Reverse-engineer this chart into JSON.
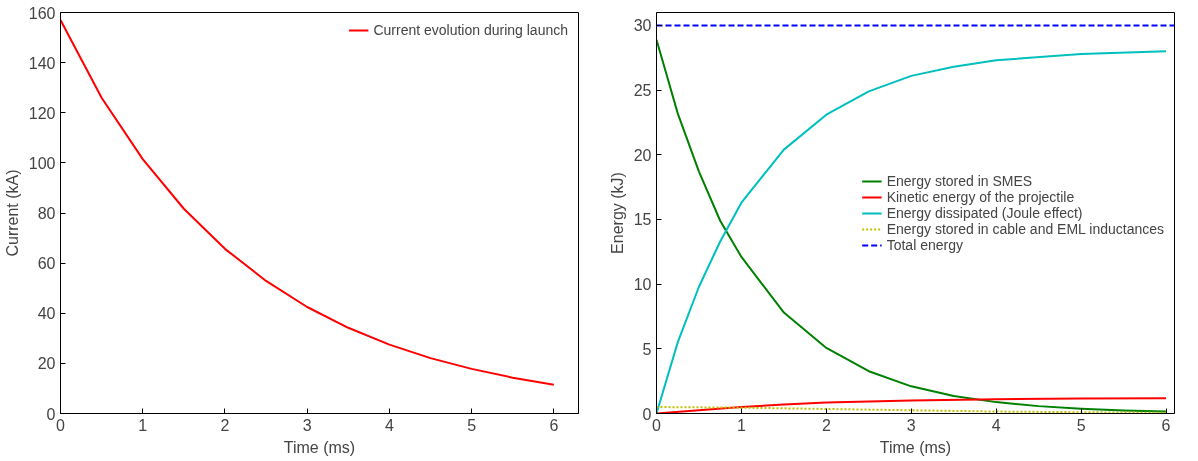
{
  "chart_data": [
    {
      "type": "line",
      "xlabel": "Time (ms)",
      "ylabel": "Current (kA)",
      "xlim": [
        0,
        6.3
      ],
      "ylim": [
        0,
        160
      ],
      "xticks": [
        0,
        1,
        2,
        3,
        4,
        5,
        6
      ],
      "yticks": [
        0,
        20,
        40,
        60,
        80,
        100,
        120,
        140,
        160
      ],
      "grid": false,
      "legend": "top right",
      "series": [
        {
          "name": "Current evolution during launch",
          "color": "#ff0000",
          "line_style": "solid",
          "x": [
            0,
            0.5,
            1,
            1.5,
            2,
            2.5,
            3,
            3.5,
            4,
            4.5,
            5,
            5.5,
            6
          ],
          "values": [
            157,
            126,
            101.5,
            81.7,
            65.7,
            52.9,
            42.5,
            34.2,
            27.5,
            22.1,
            17.8,
            14.3,
            11.5
          ]
        }
      ]
    },
    {
      "type": "line",
      "xlabel": "Time (ms)",
      "ylabel": "Energy (kJ)",
      "xlim": [
        0,
        6.1
      ],
      "ylim": [
        0,
        31
      ],
      "xticks": [
        0,
        1,
        2,
        3,
        4,
        5,
        6
      ],
      "yticks": [
        0,
        5,
        10,
        15,
        20,
        25,
        30
      ],
      "grid": false,
      "legend": "right",
      "series": [
        {
          "name": "Energy stored in SMES",
          "color": "#008000",
          "line_style": "solid",
          "x": [
            0,
            0.25,
            0.5,
            0.75,
            1,
            1.5,
            2,
            2.5,
            3,
            3.5,
            4,
            4.5,
            5,
            5.5,
            6
          ],
          "values": [
            28.9,
            23.2,
            18.7,
            14.9,
            12.1,
            7.8,
            5.07,
            3.27,
            2.1,
            1.36,
            0.88,
            0.57,
            0.37,
            0.24,
            0.15
          ]
        },
        {
          "name": "Kinetic energy of the projectile",
          "color": "#ff0000",
          "line_style": "solid",
          "x": [
            0,
            0.5,
            1,
            1.5,
            2,
            3,
            4,
            5,
            6
          ],
          "values": [
            0,
            0.25,
            0.5,
            0.7,
            0.85,
            1.0,
            1.1,
            1.15,
            1.17
          ]
        },
        {
          "name": "Energy dissipated (Joule effect)",
          "color": "#00bfbf",
          "line_style": "solid",
          "x": [
            0,
            0.25,
            0.5,
            0.75,
            1,
            1.5,
            2,
            2.5,
            3,
            3.5,
            4,
            5,
            6
          ],
          "values": [
            0,
            5.5,
            9.8,
            13.3,
            16.3,
            20.4,
            23.1,
            24.9,
            26.1,
            26.8,
            27.3,
            27.8,
            28.0
          ]
        },
        {
          "name": "Energy stored in cable and EML inductances",
          "color": "#bfbf00",
          "line_style": "dotted",
          "x": [
            0,
            1,
            2,
            3,
            4,
            5,
            6
          ],
          "values": [
            0.5,
            0.45,
            0.35,
            0.25,
            0.15,
            0.1,
            0.05
          ]
        },
        {
          "name": "Total energy",
          "color": "#0000ff",
          "line_style": "dashed",
          "x": [
            0,
            6.1
          ],
          "values": [
            30,
            30
          ]
        }
      ]
    }
  ]
}
